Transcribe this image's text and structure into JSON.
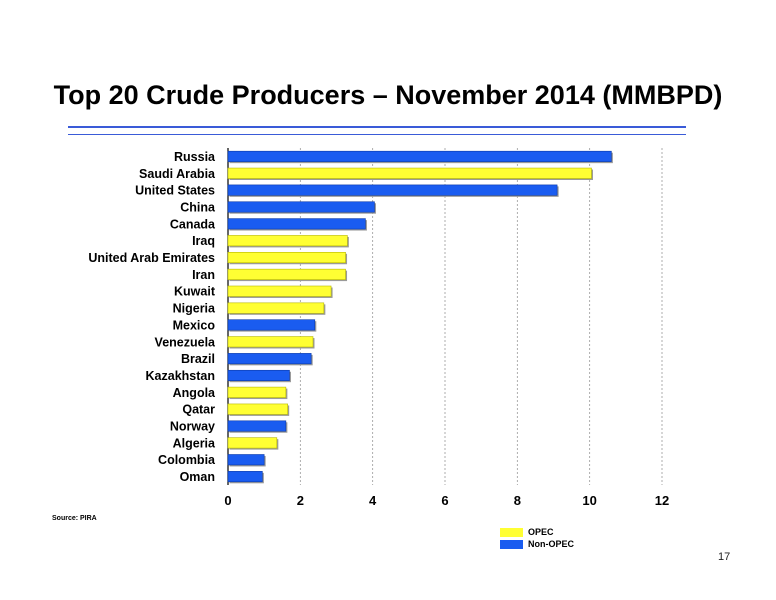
{
  "title": "Top 20 Crude Producers – November 2014 (MMBPD)",
  "source": "Source:  PIRA",
  "page_number": "17",
  "colors": {
    "opec": "#ffff33",
    "non_opec": "#1a5cf0",
    "accent_rule": "#3a5bd8"
  },
  "legend": [
    {
      "label": "OPEC",
      "group": "opec"
    },
    {
      "label": "Non-OPEC",
      "group": "non_opec"
    }
  ],
  "chart_data": {
    "type": "bar",
    "orientation": "horizontal",
    "title": "Top 20 Crude Producers – November 2014 (MMBPD)",
    "xlabel": "",
    "ylabel": "",
    "xlim": [
      0,
      12
    ],
    "xticks": [
      0,
      2,
      4,
      6,
      8,
      10,
      12
    ],
    "grid": true,
    "legend_position": "bottom-right",
    "categories": [
      "Russia",
      "Saudi Arabia",
      "United States",
      "China",
      "Canada",
      "Iraq",
      "United Arab Emirates",
      "Iran",
      "Kuwait",
      "Nigeria",
      "Mexico",
      "Venezuela",
      "Brazil",
      "Kazakhstan",
      "Angola",
      "Qatar",
      "Norway",
      "Algeria",
      "Colombia",
      "Oman"
    ],
    "values": [
      10.6,
      10.05,
      9.1,
      4.05,
      3.8,
      3.3,
      3.25,
      3.25,
      2.85,
      2.65,
      2.4,
      2.35,
      2.3,
      1.7,
      1.6,
      1.65,
      1.6,
      1.35,
      1.0,
      0.95
    ],
    "groups": [
      "non_opec",
      "opec",
      "non_opec",
      "non_opec",
      "non_opec",
      "opec",
      "opec",
      "opec",
      "opec",
      "opec",
      "non_opec",
      "opec",
      "non_opec",
      "non_opec",
      "opec",
      "opec",
      "non_opec",
      "opec",
      "non_opec",
      "non_opec"
    ]
  }
}
